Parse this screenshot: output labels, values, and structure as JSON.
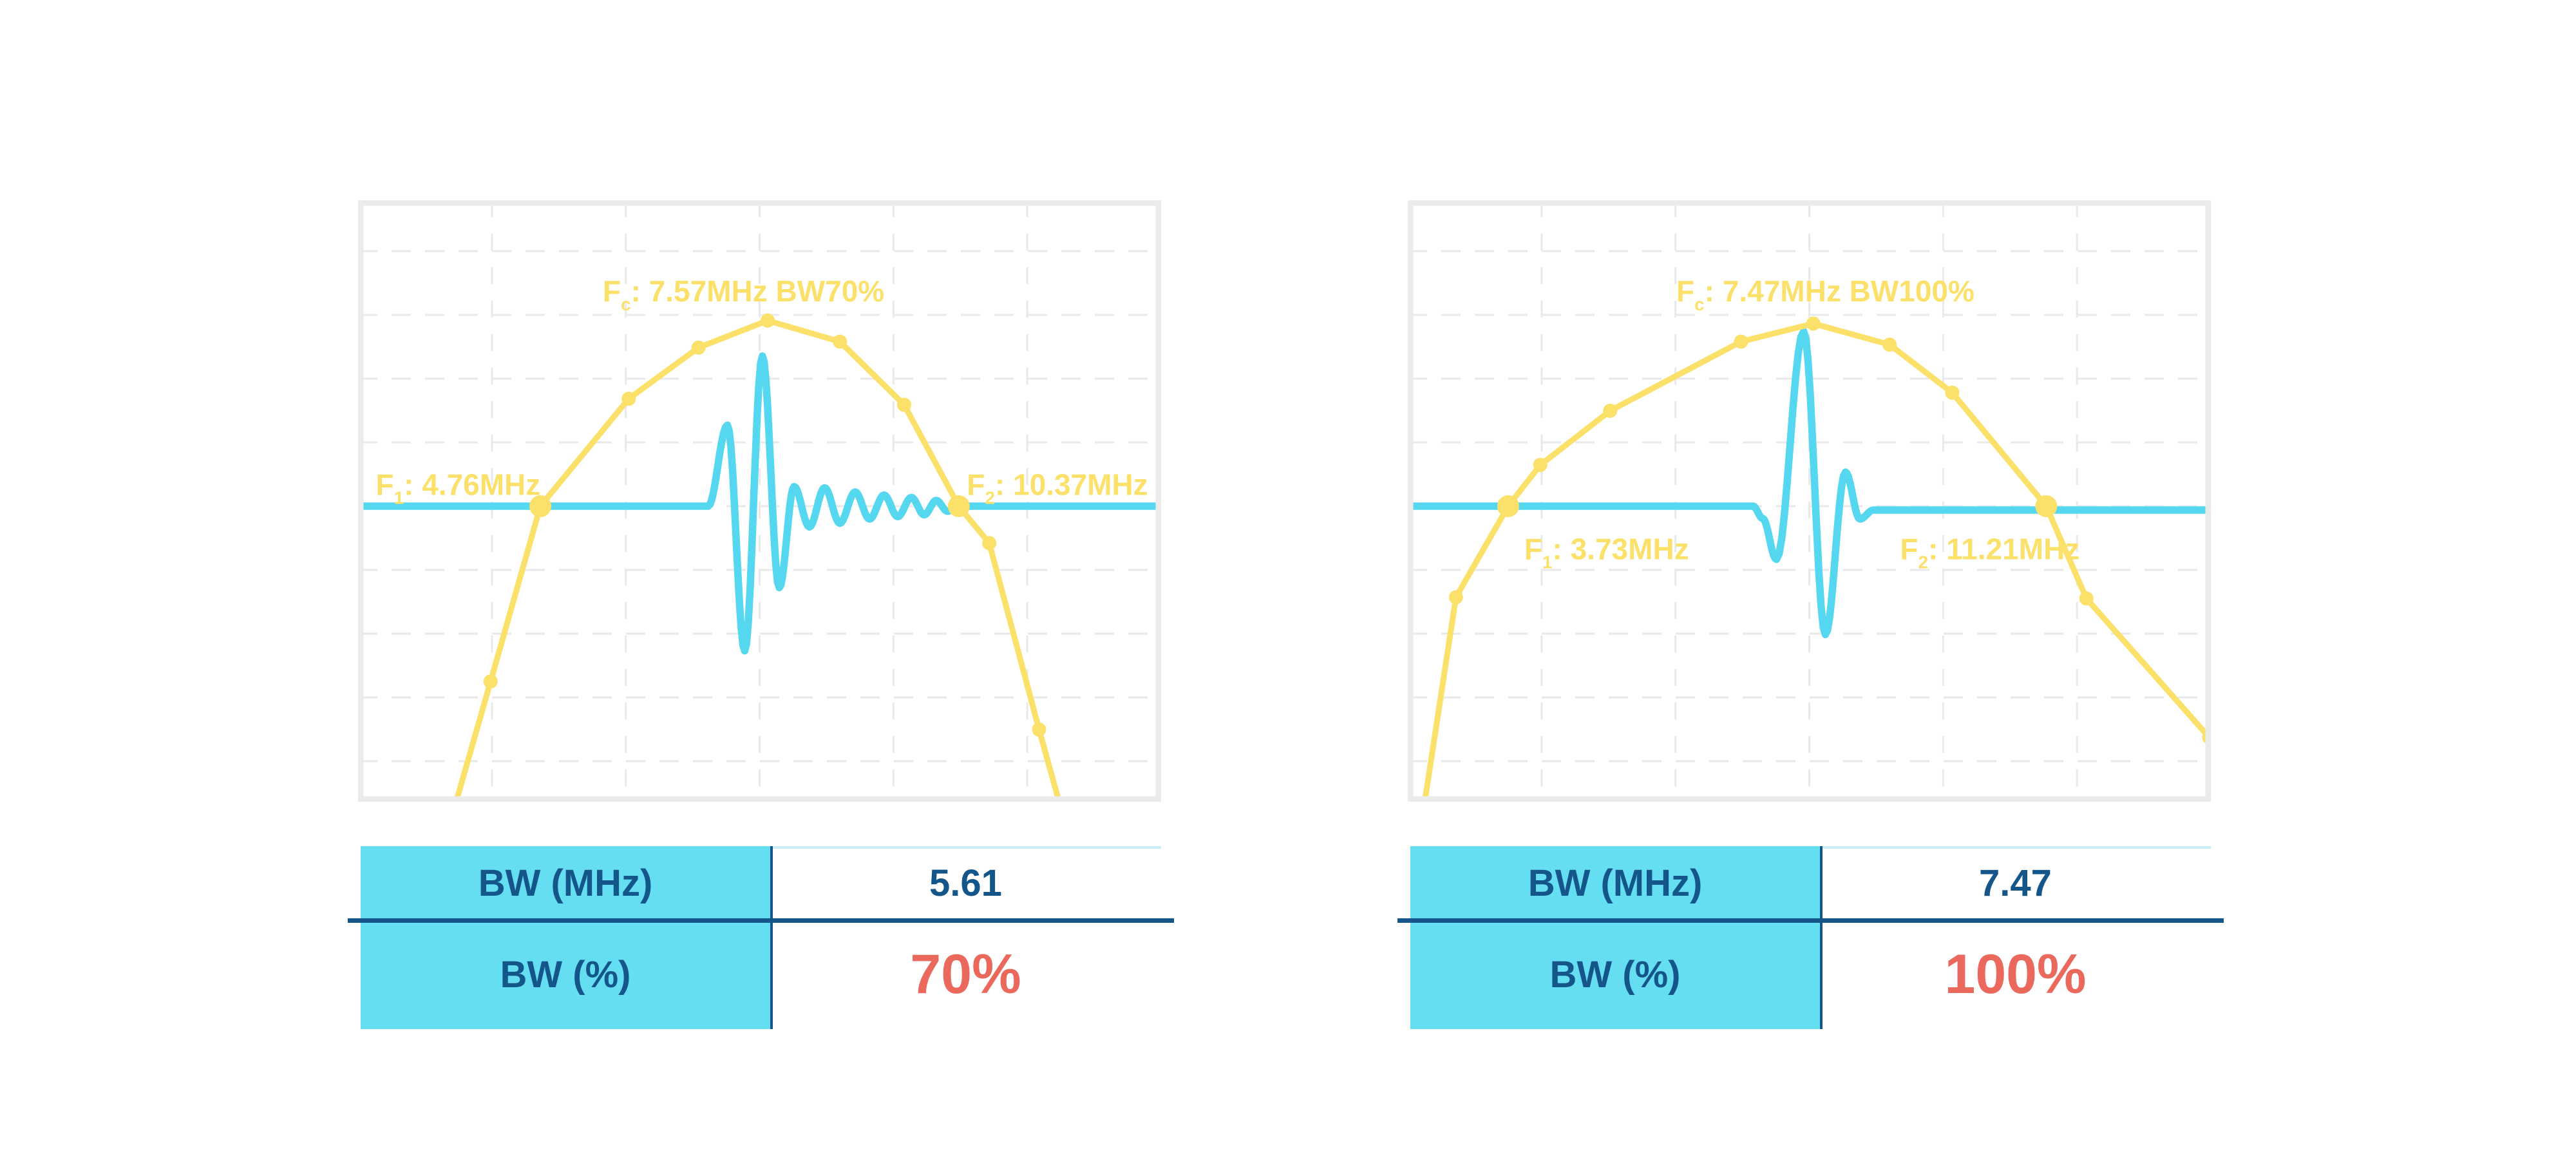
{
  "colors": {
    "yellow": "#FBE06A",
    "cyan": "#55D7EF",
    "table_cyan": "#66DEF1",
    "navy": "#15568A",
    "red": "#EB685C",
    "grid": "#E9E9E9",
    "border": "#EBEBEB",
    "value_topline": "#C8EDF5",
    "background": "#FFFFFF"
  },
  "chart_data": [
    {
      "type": "line",
      "title": "Pulse spectrum and waveform - 70% bandwidth",
      "grid": {
        "on": true,
        "v_lines": [
          0.1667,
          0.3333,
          0.5,
          0.6667,
          0.8333
        ],
        "h_lines": [
          0.0846,
          0.1906,
          0.2966,
          0.4026,
          0.5086,
          0.6146,
          0.7206,
          0.8266,
          0.9326
        ]
      },
      "baseline_y": 0.5086,
      "annotations": {
        "fc": {
          "sym": "F",
          "sub": "c",
          "rest": ": 7.57MHz BW70%",
          "x": 0.48,
          "y": 0.168,
          "anchor": "middle"
        },
        "f1": {
          "sym": "F",
          "sub": "1",
          "rest": ": 4.76MHz",
          "x": 0.022,
          "y": 0.49,
          "anchor": "start"
        },
        "f2": {
          "sym": "F",
          "sub": "2",
          "rest": ": 10.37MHz",
          "x": 0.758,
          "y": 0.49,
          "anchor": "start"
        }
      },
      "series": [
        {
          "name": "spectrum",
          "color_key": "yellow",
          "points": [
            {
              "x": 0.12,
              "y": 1.01,
              "m": 0
            },
            {
              "x": 0.165,
              "y": 0.8,
              "m": 1
            },
            {
              "x": 0.227,
              "y": 0.5086,
              "m": 2
            },
            {
              "x": 0.337,
              "y": 0.33,
              "m": 1
            },
            {
              "x": 0.424,
              "y": 0.245,
              "m": 1
            },
            {
              "x": 0.51,
              "y": 0.2,
              "m": 1
            },
            {
              "x": 0.6,
              "y": 0.235,
              "m": 1
            },
            {
              "x": 0.68,
              "y": 0.34,
              "m": 1
            },
            {
              "x": 0.748,
              "y": 0.5086,
              "m": 2
            },
            {
              "x": 0.786,
              "y": 0.57,
              "m": 1
            },
            {
              "x": 0.848,
              "y": 0.88,
              "m": 1
            },
            {
              "x": 0.875,
              "y": 1.01,
              "m": 0
            }
          ]
        },
        {
          "name": "pulse",
          "color_key": "cyan",
          "points": [
            [
              0,
              0.5086
            ],
            [
              0.436,
              0.5086
            ],
            [
              0.46,
              0.374
            ],
            [
              0.4815,
              0.749
            ],
            [
              0.5035,
              0.259
            ],
            [
              0.5245,
              0.644
            ],
            [
              0.543,
              0.476
            ],
            [
              0.562,
              0.543
            ],
            [
              0.581,
              0.478
            ],
            [
              0.6,
              0.537
            ],
            [
              0.619,
              0.485
            ],
            [
              0.637,
              0.53
            ],
            [
              0.655,
              0.49
            ],
            [
              0.672,
              0.526
            ],
            [
              0.689,
              0.494
            ],
            [
              0.705,
              0.523
            ],
            [
              0.72,
              0.499
            ],
            [
              0.734,
              0.517
            ],
            [
              0.748,
              0.5086
            ],
            [
              1,
              0.5086
            ]
          ]
        }
      ],
      "table": {
        "rows": [
          {
            "label": "BW (MHz)",
            "value": "5.61",
            "emphasis": false
          },
          {
            "label": "BW (%)",
            "value": "70%",
            "emphasis": true
          }
        ]
      }
    },
    {
      "type": "line",
      "title": "Pulse spectrum and waveform - 100% bandwidth",
      "grid": {
        "on": true,
        "v_lines": [
          0.1667,
          0.3333,
          0.5,
          0.6667,
          0.8333
        ],
        "h_lines": [
          0.0846,
          0.1906,
          0.2966,
          0.4026,
          0.5086,
          0.6146,
          0.7206,
          0.8266,
          0.9326
        ]
      },
      "baseline_y": 0.5086,
      "annotations": {
        "fc": {
          "sym": "F",
          "sub": "c",
          "rest": ": 7.47MHz BW100%",
          "x": 0.52,
          "y": 0.168,
          "anchor": "middle"
        },
        "f1": {
          "sym": "F",
          "sub": "1",
          "rest": ": 3.73MHz",
          "x": 0.145,
          "y": 0.597,
          "anchor": "start"
        },
        "f2": {
          "sym": "F",
          "sub": "2",
          "rest": ": 11.21MHz",
          "x": 0.613,
          "y": 0.597,
          "anchor": "start"
        }
      },
      "series": [
        {
          "name": "spectrum",
          "color_key": "yellow",
          "points": [
            {
              "x": 0.02,
              "y": 1.01,
              "m": 0
            },
            {
              "x": 0.06,
              "y": 0.66,
              "m": 1
            },
            {
              "x": 0.125,
              "y": 0.5086,
              "m": 2
            },
            {
              "x": 0.165,
              "y": 0.44,
              "m": 1
            },
            {
              "x": 0.252,
              "y": 0.35,
              "m": 1
            },
            {
              "x": 0.415,
              "y": 0.235,
              "m": 1
            },
            {
              "x": 0.505,
              "y": 0.205,
              "m": 1
            },
            {
              "x": 0.6,
              "y": 0.24,
              "m": 1
            },
            {
              "x": 0.678,
              "y": 0.32,
              "m": 1
            },
            {
              "x": 0.795,
              "y": 0.5086,
              "m": 2
            },
            {
              "x": 0.845,
              "y": 0.662,
              "m": 1
            },
            {
              "x": 0.998,
              "y": 0.893,
              "m": 1
            }
          ]
        },
        {
          "name": "pulse",
          "color_key": "cyan",
          "points": [
            [
              0,
              0.5086
            ],
            [
              0.43,
              0.5086
            ],
            [
              0.442,
              0.529
            ],
            [
              0.459,
              0.597
            ],
            [
              0.493,
              0.218
            ],
            [
              0.52,
              0.722
            ],
            [
              0.545,
              0.452
            ],
            [
              0.563,
              0.53
            ],
            [
              0.58,
              0.515
            ],
            [
              1,
              0.515
            ]
          ]
        }
      ],
      "table": {
        "rows": [
          {
            "label": "BW (MHz)",
            "value": "7.47",
            "emphasis": false
          },
          {
            "label": "BW (%)",
            "value": "100%",
            "emphasis": true
          }
        ]
      }
    }
  ]
}
